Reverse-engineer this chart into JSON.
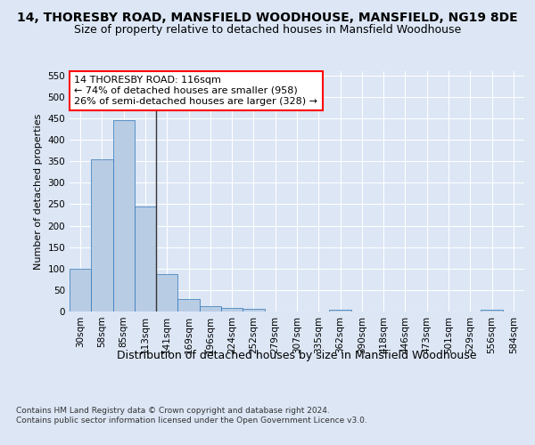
{
  "title": "14, THORESBY ROAD, MANSFIELD WOODHOUSE, MANSFIELD, NG19 8DE",
  "subtitle": "Size of property relative to detached houses in Mansfield Woodhouse",
  "xlabel": "Distribution of detached houses by size in Mansfield Woodhouse",
  "ylabel": "Number of detached properties",
  "footnote": "Contains HM Land Registry data © Crown copyright and database right 2024.\nContains public sector information licensed under the Open Government Licence v3.0.",
  "bar_labels": [
    "30sqm",
    "58sqm",
    "85sqm",
    "113sqm",
    "141sqm",
    "169sqm",
    "196sqm",
    "224sqm",
    "252sqm",
    "279sqm",
    "307sqm",
    "335sqm",
    "362sqm",
    "390sqm",
    "418sqm",
    "446sqm",
    "473sqm",
    "501sqm",
    "529sqm",
    "556sqm",
    "584sqm"
  ],
  "bar_values": [
    100,
    355,
    445,
    245,
    87,
    30,
    13,
    9,
    6,
    0,
    0,
    0,
    5,
    0,
    0,
    0,
    0,
    0,
    0,
    5,
    0
  ],
  "bar_color": "#b8cce4",
  "bar_edge_color": "#2e75b6",
  "highlight_bar_index": 3,
  "property_size": 116,
  "annotation_text": "14 THORESBY ROAD: 116sqm\n← 74% of detached houses are smaller (958)\n26% of semi-detached houses are larger (328) →",
  "annotation_box_color": "#ffffff",
  "annotation_border_color": "#ff0000",
  "ylim": [
    0,
    560
  ],
  "yticks": [
    0,
    50,
    100,
    150,
    200,
    250,
    300,
    350,
    400,
    450,
    500,
    550
  ],
  "background_color": "#dce6f5",
  "grid_color": "#ffffff",
  "title_fontsize": 10,
  "subtitle_fontsize": 9,
  "xlabel_fontsize": 9,
  "ylabel_fontsize": 8,
  "tick_fontsize": 7.5,
  "annotation_fontsize": 8,
  "footnote_fontsize": 6.5
}
